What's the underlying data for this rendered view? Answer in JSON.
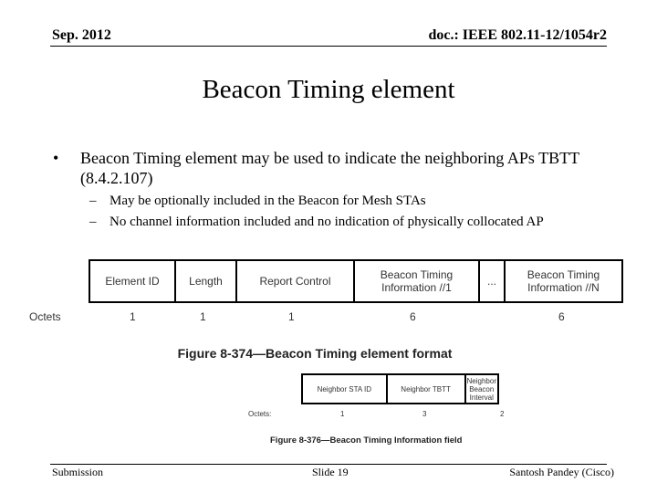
{
  "header": {
    "date": "Sep. 2012",
    "doc": "doc.: IEEE 802.11-12/1054r2"
  },
  "title": "Beacon Timing element",
  "bullet": {
    "marker": "•",
    "text": "Beacon Timing element may be used to indicate the neighboring APs TBTT (8.4.2.107)",
    "subs": [
      {
        "marker": "–",
        "text": "May be optionally included in the Beacon for Mesh STAs"
      },
      {
        "marker": "–",
        "text": "No channel information included and no indication of physically collocated AP"
      }
    ]
  },
  "figure1": {
    "fields": [
      "Element ID",
      "Length",
      "Report Control",
      "Beacon Timing Information //1",
      "...",
      "Beacon Timing Information //N"
    ],
    "octets_label": "Octets",
    "octets": [
      "1",
      "1",
      "1",
      "6",
      "",
      "6"
    ],
    "caption": "Figure 8-374—Beacon Timing element format"
  },
  "figure2": {
    "fields": [
      "Neighbor STA ID",
      "Neighbor TBTT",
      "Neighbor Beacon Interval"
    ],
    "octets_label": "Octets:",
    "octets": [
      "1",
      "3",
      "2"
    ],
    "caption": "Figure 8-376—Beacon Timing Information field"
  },
  "footer": {
    "left": "Submission",
    "center": "Slide 19",
    "right": "Santosh Pandey (Cisco)"
  }
}
